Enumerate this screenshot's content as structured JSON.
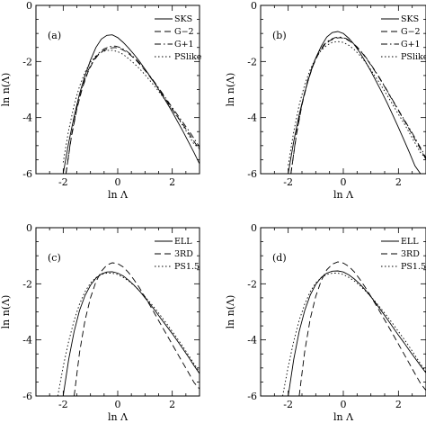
{
  "chart_data": [
    {
      "type": "line",
      "panel_label": "(a)",
      "xlabel": "ln Λ",
      "ylabel": "ln n(Λ)",
      "xlim": [
        -3,
        3
      ],
      "ylim": [
        -6,
        0
      ],
      "xticks": [
        -2,
        0,
        2
      ],
      "yticks": [
        0,
        -2,
        -4,
        -6
      ],
      "legend_position": "top-right",
      "series": [
        {
          "name": "SKS",
          "style": "solid",
          "x": [
            -2.0,
            -1.8,
            -1.6,
            -1.4,
            -1.2,
            -1.0,
            -0.8,
            -0.6,
            -0.4,
            -0.2,
            0.0,
            0.2,
            0.4,
            0.6,
            0.8,
            1.0,
            1.2,
            1.4,
            1.6,
            1.8,
            2.0,
            2.2,
            2.4,
            2.6,
            2.8,
            3.0
          ],
          "y": [
            -6.0,
            -4.9,
            -3.95,
            -3.15,
            -2.5,
            -1.95,
            -1.5,
            -1.2,
            -1.07,
            -1.05,
            -1.15,
            -1.32,
            -1.52,
            -1.75,
            -2.0,
            -2.27,
            -2.55,
            -2.84,
            -3.15,
            -3.47,
            -3.8,
            -4.15,
            -4.5,
            -4.88,
            -5.25,
            -5.65
          ]
        },
        {
          "name": "G−2",
          "style": "dash",
          "x": [
            -1.9,
            -1.7,
            -1.5,
            -1.3,
            -1.1,
            -0.9,
            -0.7,
            -0.5,
            -0.3,
            -0.1,
            0.1,
            0.3,
            0.5,
            0.7,
            0.9,
            1.1,
            1.3,
            1.5,
            1.7,
            1.9,
            2.1,
            2.3,
            2.5,
            2.7,
            2.9,
            3.0
          ],
          "y": [
            -6.0,
            -4.7,
            -3.7,
            -2.95,
            -2.4,
            -2.0,
            -1.75,
            -1.6,
            -1.52,
            -1.5,
            -1.54,
            -1.65,
            -1.8,
            -1.98,
            -2.2,
            -2.44,
            -2.7,
            -2.97,
            -3.26,
            -3.55,
            -3.84,
            -4.12,
            -4.4,
            -4.7,
            -5.0,
            -5.15
          ]
        },
        {
          "name": "G+1",
          "style": "dashdot",
          "x": [
            -1.9,
            -1.7,
            -1.5,
            -1.3,
            -1.1,
            -0.9,
            -0.7,
            -0.5,
            -0.3,
            -0.1,
            0.1,
            0.3,
            0.5,
            0.7,
            0.9,
            1.1,
            1.3,
            1.5,
            1.7,
            1.9,
            2.1,
            2.3,
            2.5,
            2.7,
            2.9,
            3.0
          ],
          "y": [
            -6.0,
            -4.65,
            -3.65,
            -2.9,
            -2.35,
            -1.96,
            -1.7,
            -1.55,
            -1.47,
            -1.45,
            -1.5,
            -1.61,
            -1.76,
            -1.95,
            -2.17,
            -2.41,
            -2.67,
            -2.94,
            -3.22,
            -3.5,
            -3.78,
            -4.05,
            -4.32,
            -4.6,
            -4.9,
            -5.05
          ]
        },
        {
          "name": "PSlike",
          "style": "dot",
          "x": [
            -2.0,
            -1.8,
            -1.6,
            -1.4,
            -1.2,
            -1.0,
            -0.8,
            -0.6,
            -0.4,
            -0.2,
            0.0,
            0.2,
            0.4,
            0.6,
            0.8,
            1.0,
            1.2,
            1.4,
            1.6,
            1.8,
            2.0,
            2.2,
            2.4,
            2.6,
            2.8,
            3.0
          ],
          "y": [
            -5.6,
            -4.45,
            -3.55,
            -2.88,
            -2.38,
            -2.02,
            -1.8,
            -1.67,
            -1.6,
            -1.6,
            -1.65,
            -1.75,
            -1.9,
            -2.07,
            -2.26,
            -2.47,
            -2.7,
            -2.94,
            -3.19,
            -3.45,
            -3.72,
            -4.0,
            -4.3,
            -4.62,
            -4.95,
            -5.1
          ]
        }
      ]
    },
    {
      "type": "line",
      "panel_label": "(b)",
      "xlabel": "ln Λ",
      "ylabel": "ln n(Λ)",
      "xlim": [
        -3,
        3
      ],
      "ylim": [
        -6,
        0
      ],
      "xticks": [
        -2,
        0,
        2
      ],
      "yticks": [
        0,
        -2,
        -4,
        -6
      ],
      "legend_position": "top-right",
      "series": [
        {
          "name": "SKS",
          "style": "solid",
          "x": [
            -2.0,
            -1.8,
            -1.6,
            -1.4,
            -1.2,
            -1.0,
            -0.8,
            -0.6,
            -0.4,
            -0.2,
            0.0,
            0.2,
            0.4,
            0.6,
            0.8,
            1.0,
            1.2,
            1.4,
            1.6,
            1.8,
            2.0,
            2.2,
            2.4,
            2.6,
            2.8,
            3.0
          ],
          "y": [
            -6.0,
            -4.85,
            -3.9,
            -3.1,
            -2.42,
            -1.88,
            -1.45,
            -1.13,
            -0.97,
            -0.93,
            -1.0,
            -1.17,
            -1.4,
            -1.68,
            -2.0,
            -2.35,
            -2.72,
            -3.1,
            -3.5,
            -3.92,
            -4.35,
            -4.8,
            -5.25,
            -5.72,
            -6.0,
            -6.0
          ]
        },
        {
          "name": "G−2",
          "style": "dash",
          "x": [
            -1.9,
            -1.7,
            -1.5,
            -1.3,
            -1.1,
            -0.9,
            -0.7,
            -0.5,
            -0.3,
            -0.1,
            0.1,
            0.3,
            0.5,
            0.7,
            0.9,
            1.1,
            1.3,
            1.5,
            1.7,
            1.9,
            2.1,
            2.3,
            2.5,
            2.7,
            2.9,
            3.0
          ],
          "y": [
            -6.0,
            -4.6,
            -3.55,
            -2.75,
            -2.15,
            -1.72,
            -1.43,
            -1.26,
            -1.17,
            -1.15,
            -1.2,
            -1.32,
            -1.5,
            -1.72,
            -1.98,
            -2.27,
            -2.58,
            -2.9,
            -3.24,
            -3.58,
            -3.92,
            -4.25,
            -4.6,
            -4.95,
            -5.3,
            -5.5
          ]
        },
        {
          "name": "G+1",
          "style": "dashdot",
          "x": [
            -1.9,
            -1.7,
            -1.5,
            -1.3,
            -1.1,
            -0.9,
            -0.7,
            -0.5,
            -0.3,
            -0.1,
            0.1,
            0.3,
            0.5,
            0.7,
            0.9,
            1.1,
            1.3,
            1.5,
            1.7,
            1.9,
            2.1,
            2.3,
            2.5,
            2.7,
            2.9,
            3.0
          ],
          "y": [
            -6.0,
            -4.55,
            -3.5,
            -2.7,
            -2.1,
            -1.68,
            -1.4,
            -1.23,
            -1.15,
            -1.13,
            -1.18,
            -1.3,
            -1.48,
            -1.7,
            -1.96,
            -2.25,
            -2.56,
            -2.88,
            -3.22,
            -3.56,
            -3.9,
            -4.22,
            -4.55,
            -4.9,
            -5.25,
            -5.45
          ]
        },
        {
          "name": "PSlike",
          "style": "dot",
          "x": [
            -2.0,
            -1.8,
            -1.6,
            -1.4,
            -1.2,
            -1.0,
            -0.8,
            -0.6,
            -0.4,
            -0.2,
            0.0,
            0.2,
            0.4,
            0.6,
            0.8,
            1.0,
            1.2,
            1.4,
            1.6,
            1.8,
            2.0,
            2.2,
            2.4,
            2.6,
            2.8,
            3.0
          ],
          "y": [
            -5.7,
            -4.5,
            -3.55,
            -2.82,
            -2.28,
            -1.88,
            -1.6,
            -1.42,
            -1.32,
            -1.29,
            -1.32,
            -1.42,
            -1.58,
            -1.78,
            -2.02,
            -2.3,
            -2.6,
            -2.9,
            -3.22,
            -3.55,
            -3.88,
            -4.2,
            -4.55,
            -4.9,
            -5.25,
            -5.45
          ]
        }
      ]
    },
    {
      "type": "line",
      "panel_label": "(c)",
      "xlabel": "ln Λ",
      "ylabel": "ln n(Λ)",
      "xlim": [
        -3,
        3
      ],
      "ylim": [
        -6,
        0
      ],
      "xticks": [
        -2,
        0,
        2
      ],
      "yticks": [
        0,
        -2,
        -4,
        -6
      ],
      "legend_position": "top-right",
      "series": [
        {
          "name": "ELL",
          "style": "solid",
          "x": [
            -2.0,
            -1.8,
            -1.6,
            -1.4,
            -1.2,
            -1.0,
            -0.8,
            -0.6,
            -0.4,
            -0.2,
            0.0,
            0.2,
            0.4,
            0.6,
            0.8,
            1.0,
            1.2,
            1.4,
            1.6,
            1.8,
            2.0,
            2.2,
            2.4,
            2.6,
            2.8,
            3.0
          ],
          "y": [
            -6.0,
            -4.7,
            -3.7,
            -2.95,
            -2.42,
            -2.05,
            -1.8,
            -1.65,
            -1.58,
            -1.57,
            -1.62,
            -1.72,
            -1.87,
            -2.05,
            -2.26,
            -2.5,
            -2.74,
            -3.0,
            -3.26,
            -3.52,
            -3.78,
            -4.05,
            -4.33,
            -4.62,
            -4.92,
            -5.2
          ]
        },
        {
          "name": "3RD",
          "style": "dash",
          "x": [
            -1.6,
            -1.4,
            -1.2,
            -1.0,
            -0.8,
            -0.6,
            -0.4,
            -0.2,
            0.0,
            0.2,
            0.4,
            0.6,
            0.8,
            1.0,
            1.2,
            1.4,
            1.6,
            1.8,
            2.0,
            2.2,
            2.4,
            2.6,
            2.8,
            3.0
          ],
          "y": [
            -6.0,
            -4.45,
            -3.3,
            -2.5,
            -1.93,
            -1.55,
            -1.33,
            -1.25,
            -1.28,
            -1.4,
            -1.6,
            -1.86,
            -2.15,
            -2.47,
            -2.8,
            -3.14,
            -3.48,
            -3.82,
            -4.16,
            -4.5,
            -4.84,
            -5.18,
            -5.52,
            -5.75
          ]
        },
        {
          "name": "PS1.5",
          "style": "dot",
          "x": [
            -2.2,
            -2.0,
            -1.8,
            -1.6,
            -1.4,
            -1.2,
            -1.0,
            -0.8,
            -0.6,
            -0.4,
            -0.2,
            0.0,
            0.2,
            0.4,
            0.6,
            0.8,
            1.0,
            1.2,
            1.4,
            1.6,
            1.8,
            2.0,
            2.2,
            2.4,
            2.6,
            2.8,
            3.0
          ],
          "y": [
            -6.0,
            -4.95,
            -4.05,
            -3.3,
            -2.72,
            -2.28,
            -1.97,
            -1.78,
            -1.67,
            -1.62,
            -1.62,
            -1.67,
            -1.77,
            -1.9,
            -2.06,
            -2.25,
            -2.46,
            -2.68,
            -2.92,
            -3.17,
            -3.43,
            -3.7,
            -3.97,
            -4.25,
            -4.55,
            -4.85,
            -5.15
          ]
        }
      ]
    },
    {
      "type": "line",
      "panel_label": "(d)",
      "xlabel": "ln Λ",
      "ylabel": "ln n(Λ)",
      "xlim": [
        -3,
        3
      ],
      "ylim": [
        -6,
        0
      ],
      "xticks": [
        -2,
        0,
        2
      ],
      "yticks": [
        0,
        -2,
        -4,
        -6
      ],
      "legend_position": "top-right",
      "series": [
        {
          "name": "ELL",
          "style": "solid",
          "x": [
            -2.0,
            -1.8,
            -1.6,
            -1.4,
            -1.2,
            -1.0,
            -0.8,
            -0.6,
            -0.4,
            -0.2,
            0.0,
            0.2,
            0.4,
            0.6,
            0.8,
            1.0,
            1.2,
            1.4,
            1.6,
            1.8,
            2.0,
            2.2,
            2.4,
            2.6,
            2.8,
            3.0
          ],
          "y": [
            -6.0,
            -4.7,
            -3.7,
            -2.95,
            -2.4,
            -2.02,
            -1.77,
            -1.62,
            -1.55,
            -1.54,
            -1.58,
            -1.68,
            -1.83,
            -2.01,
            -2.22,
            -2.46,
            -2.72,
            -2.99,
            -3.27,
            -3.55,
            -3.83,
            -4.1,
            -4.38,
            -4.65,
            -4.92,
            -5.18
          ]
        },
        {
          "name": "3RD",
          "style": "dash",
          "x": [
            -1.6,
            -1.4,
            -1.2,
            -1.0,
            -0.8,
            -0.6,
            -0.4,
            -0.2,
            0.0,
            0.2,
            0.4,
            0.6,
            0.8,
            1.0,
            1.2,
            1.4,
            1.6,
            1.8,
            2.0,
            2.2,
            2.4,
            2.6,
            2.8,
            3.0
          ],
          "y": [
            -6.0,
            -4.4,
            -3.25,
            -2.45,
            -1.88,
            -1.5,
            -1.3,
            -1.22,
            -1.26,
            -1.38,
            -1.58,
            -1.84,
            -2.13,
            -2.45,
            -2.78,
            -3.12,
            -3.46,
            -3.8,
            -4.15,
            -4.5,
            -4.85,
            -5.2,
            -5.55,
            -5.8
          ]
        },
        {
          "name": "PS1.5",
          "style": "dot",
          "x": [
            -2.2,
            -2.0,
            -1.8,
            -1.6,
            -1.4,
            -1.2,
            -1.0,
            -0.8,
            -0.6,
            -0.4,
            -0.2,
            0.0,
            0.2,
            0.4,
            0.6,
            0.8,
            1.0,
            1.2,
            1.4,
            1.6,
            1.8,
            2.0,
            2.2,
            2.4,
            2.6,
            2.8,
            3.0
          ],
          "y": [
            -6.0,
            -4.95,
            -4.05,
            -3.3,
            -2.72,
            -2.28,
            -1.97,
            -1.78,
            -1.67,
            -1.62,
            -1.62,
            -1.67,
            -1.77,
            -1.9,
            -2.06,
            -2.25,
            -2.46,
            -2.68,
            -2.92,
            -3.17,
            -3.43,
            -3.7,
            -3.97,
            -4.25,
            -4.55,
            -4.85,
            -5.15
          ]
        }
      ]
    }
  ]
}
